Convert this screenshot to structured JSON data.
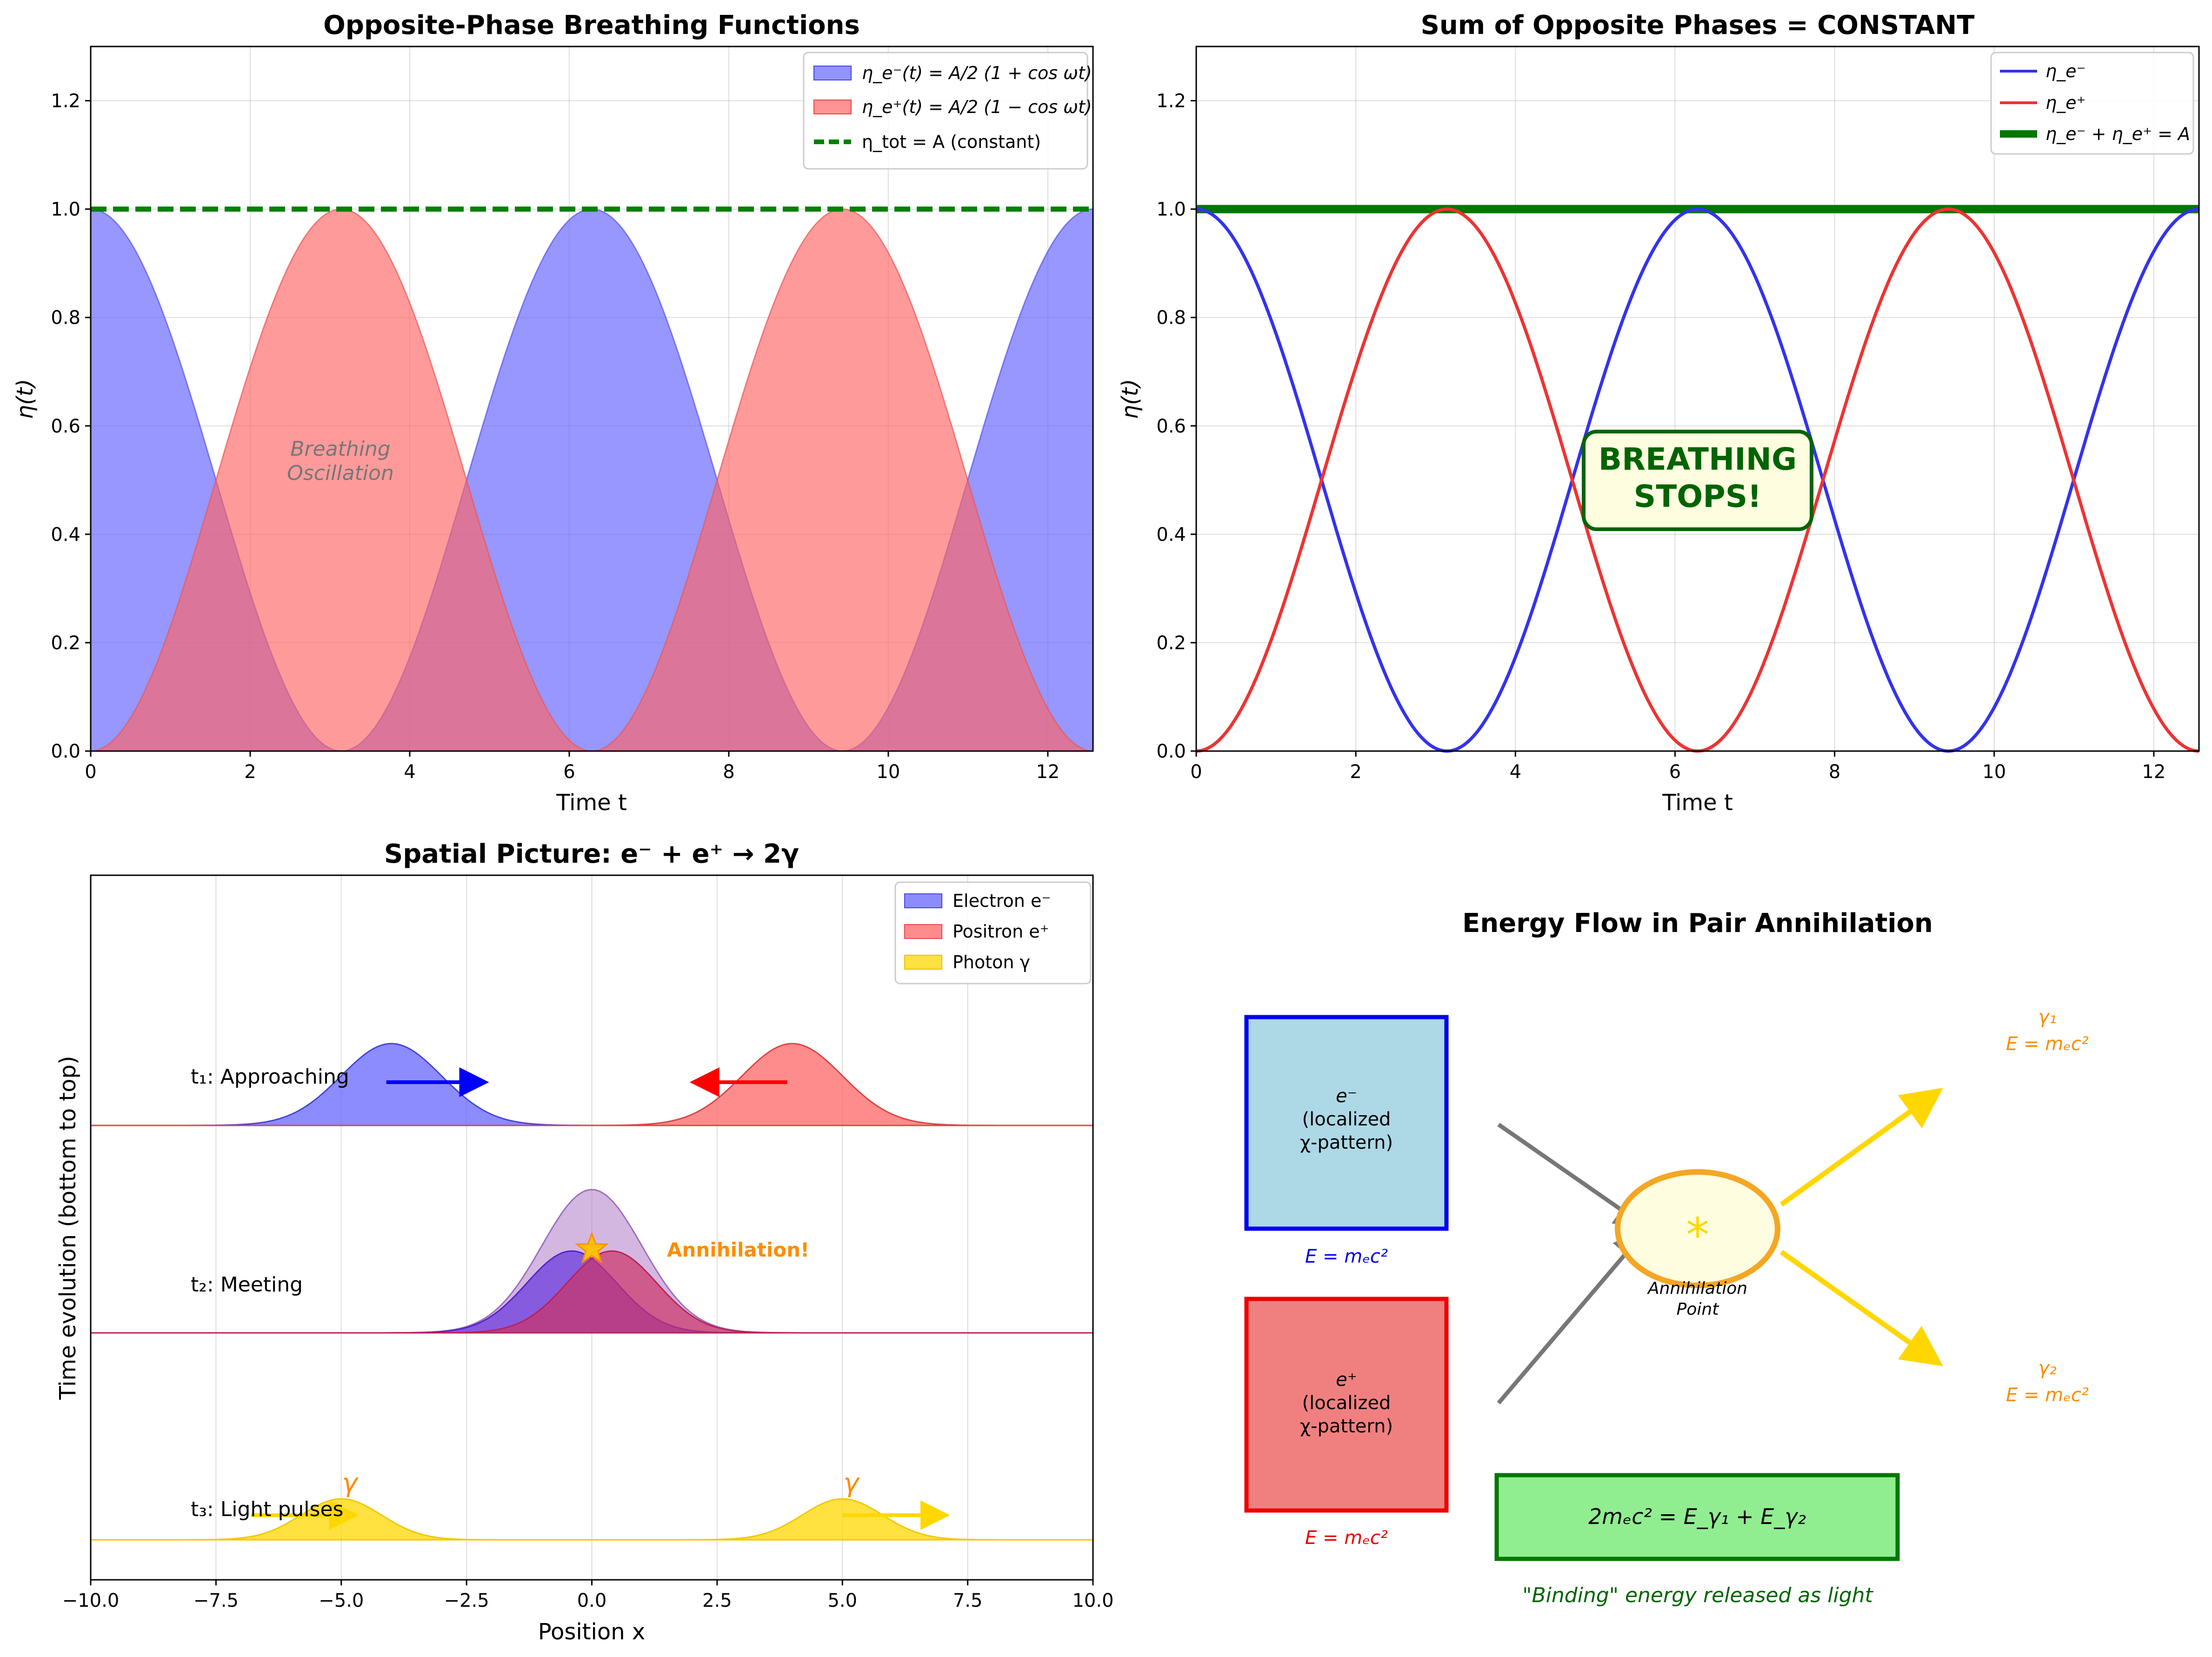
{
  "chart_data": [
    {
      "type": "area",
      "title": "Opposite-Phase Breathing Functions",
      "xlabel": "Time t",
      "ylabel": "η(t)",
      "xlim": [
        0,
        12.566
      ],
      "ylim": [
        0,
        1.3
      ],
      "xticks": [
        "0",
        "2",
        "4",
        "6",
        "8",
        "10",
        "12"
      ],
      "yticks": [
        "0.0",
        "0.2",
        "0.4",
        "0.6",
        "0.8",
        "1.0",
        "1.2"
      ],
      "grid": true,
      "legend_position": "top-right",
      "amplitude_A": 1.0,
      "omega": 1.0,
      "series": [
        {
          "name": "η_e⁻(t) = A/2 (1 + cos ωt)",
          "formula": "A/2*(1+cos(wt))",
          "color": "#6666ff",
          "style": "fill"
        },
        {
          "name": "η_e⁺(t) = A/2 (1 − cos ωt)",
          "formula": "A/2*(1-cos(wt))",
          "color": "#ff6666",
          "style": "fill"
        },
        {
          "name": "η_tot = A (constant)",
          "value": 1.0,
          "color": "#008000",
          "style": "dashed"
        }
      ],
      "annotations": [
        "Breathing",
        "Oscillation"
      ]
    },
    {
      "type": "line",
      "title": "Sum of Opposite Phases = CONSTANT",
      "xlabel": "Time t",
      "ylabel": "η(t)",
      "xlim": [
        0,
        12.566
      ],
      "ylim": [
        0,
        1.3
      ],
      "xticks": [
        "0",
        "2",
        "4",
        "6",
        "8",
        "10",
        "12"
      ],
      "yticks": [
        "0.0",
        "0.2",
        "0.4",
        "0.6",
        "0.8",
        "1.0",
        "1.2"
      ],
      "grid": true,
      "legend_position": "top-right",
      "series": [
        {
          "name": "η_e⁻",
          "formula": "A/2*(1+cos(wt))",
          "color": "#3333ee"
        },
        {
          "name": "η_e⁺",
          "formula": "A/2*(1-cos(wt))",
          "color": "#ee3333"
        },
        {
          "name": "η_e⁻ + η_e⁺ = A",
          "value": 1.0,
          "color": "#007700"
        }
      ],
      "callout": [
        "BREATHING",
        "STOPS!"
      ]
    },
    {
      "type": "area",
      "title": "Spatial Picture: e⁻ + e⁺ → 2γ",
      "xlabel": "Position x",
      "ylabel": "Time evolution (bottom to top)",
      "xlim": [
        -10,
        10
      ],
      "xticks": [
        "−10.0",
        "−7.5",
        "−5.0",
        "−2.5",
        "0.0",
        "2.5",
        "5.0",
        "7.5",
        "10.0"
      ],
      "grid": true,
      "legend_position": "top-right",
      "legend": [
        {
          "name": "Electron e⁻",
          "color": "#6666ff"
        },
        {
          "name": "Positron e⁺",
          "color": "#ff6666"
        },
        {
          "name": "Photon γ",
          "color": "#ffd700"
        }
      ],
      "stages": [
        {
          "label": "t₁: Approaching",
          "electron_center": -4,
          "positron_center": 4,
          "height": 0.4,
          "width": 1.0
        },
        {
          "label": "t₂: Meeting",
          "electron_center": -0.4,
          "positron_center": 0.4,
          "height": 0.4,
          "combined_height": 0.7,
          "annotation": "Annihilation!"
        },
        {
          "label": "t₃: Light pulses",
          "photon_centers": [
            -5,
            5
          ],
          "height": 0.2,
          "photon_label": "γ"
        }
      ]
    },
    {
      "type": "diagram",
      "title": "Energy Flow in Pair Annihilation",
      "electron_box": {
        "line1": "e⁻",
        "line2": "(localized",
        "line3": "χ-pattern)",
        "energy": "E = mₑc²",
        "fill": "#add8e6",
        "border": "#0000ee"
      },
      "positron_box": {
        "line1": "e⁺",
        "line2": "(localized",
        "line3": "χ-pattern)",
        "energy": "E = mₑc²",
        "fill": "#f08080",
        "border": "#ee0000"
      },
      "annihilation_point": {
        "symbol": "*",
        "line1": "Annihilation",
        "line2": "Point"
      },
      "photon_1": {
        "name": "γ₁",
        "energy": "E = mₑc²"
      },
      "photon_2": {
        "name": "γ₂",
        "energy": "E = mₑc²"
      },
      "equation": "2mₑc² = E_γ₁ + E_γ₂",
      "caption": "\"Binding\" energy released as light"
    }
  ]
}
